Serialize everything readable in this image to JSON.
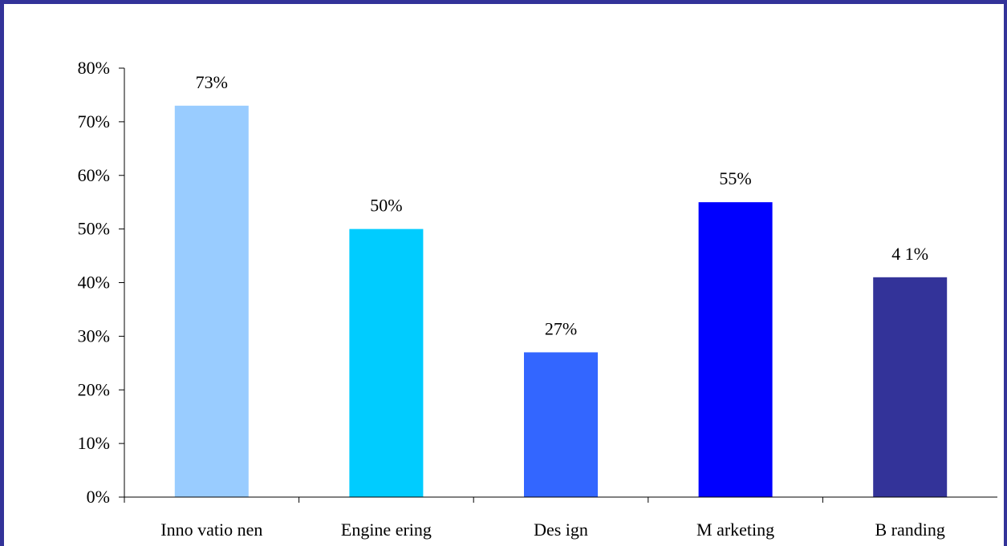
{
  "chart_data": {
    "type": "bar",
    "categories": [
      "Inno vatio nen",
      "Engine ering",
      "Des ign",
      "M arketing",
      "B randing"
    ],
    "values": [
      73,
      50,
      27,
      55,
      41
    ],
    "value_labels": [
      "73%",
      "50%",
      "27%",
      "55%",
      "4 1%"
    ],
    "bar_colors": [
      "#99CCFF",
      "#00CCFF",
      "#3366FF",
      "#0000FF",
      "#333399"
    ],
    "y_ticks": [
      0,
      10,
      20,
      30,
      40,
      50,
      60,
      70,
      80
    ],
    "y_tick_labels": [
      "0%",
      "10%",
      "20%",
      "30%",
      "40%",
      "50%",
      "60%",
      "70%",
      "80%"
    ],
    "ylim": [
      0,
      80
    ],
    "title": "",
    "xlabel": "",
    "ylabel": "",
    "grid": false,
    "legend": "none",
    "frame_color": "#333399"
  }
}
